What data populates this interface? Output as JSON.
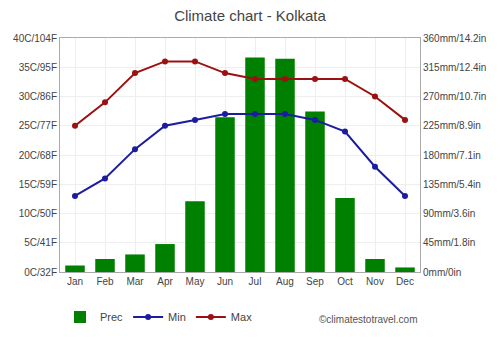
{
  "chart_data": {
    "type": "bar",
    "title": "Climate chart - Kolkata",
    "categories": [
      "Jan",
      "Feb",
      "Mar",
      "Apr",
      "May",
      "Jun",
      "Jul",
      "Aug",
      "Sep",
      "Oct",
      "Nov",
      "Dec"
    ],
    "series": [
      {
        "name": "Prec",
        "type": "bar",
        "axis": "y2",
        "color": "#008000",
        "values": [
          10,
          20,
          27,
          43,
          109,
          238,
          330,
          328,
          247,
          114,
          20,
          7
        ]
      },
      {
        "name": "Min",
        "type": "line",
        "marker": "circle",
        "color": "#1c1ca0",
        "values": [
          13,
          16,
          21,
          25,
          26,
          27,
          27,
          27,
          26,
          24,
          18,
          13
        ]
      },
      {
        "name": "Max",
        "type": "line",
        "marker": "circle",
        "color": "#9b1010",
        "values": [
          25,
          29,
          34,
          36,
          36,
          34,
          33,
          33,
          33,
          33,
          30,
          26
        ]
      }
    ],
    "ylim": [
      0,
      40
    ],
    "yticks": [
      {
        "value": 0,
        "label": "0C/32F"
      },
      {
        "value": 5,
        "label": "5C/41F"
      },
      {
        "value": 10,
        "label": "10C/50F"
      },
      {
        "value": 15,
        "label": "15C/59F"
      },
      {
        "value": 20,
        "label": "20C/68F"
      },
      {
        "value": 25,
        "label": "25C/77F"
      },
      {
        "value": 30,
        "label": "30C/86F"
      },
      {
        "value": 35,
        "label": "35C/95F"
      },
      {
        "value": 40,
        "label": "40C/104F"
      }
    ],
    "y2lim": [
      0,
      360
    ],
    "y2ticks": [
      {
        "value": 0,
        "label": "0mm/0in"
      },
      {
        "value": 45,
        "label": "45mm/1.8in"
      },
      {
        "value": 90,
        "label": "90mm/3.6in"
      },
      {
        "value": 135,
        "label": "135mm/5.4in"
      },
      {
        "value": 180,
        "label": "180mm/7.1in"
      },
      {
        "value": 225,
        "label": "225mm/8.9in"
      },
      {
        "value": 270,
        "label": "270mm/10.7in"
      },
      {
        "value": 315,
        "label": "315mm/12.4in"
      },
      {
        "value": 360,
        "label": "360mm/14.2in"
      }
    ],
    "grid": true,
    "legend": "bottom",
    "annotations": [
      "©climatestotravel.com"
    ]
  }
}
